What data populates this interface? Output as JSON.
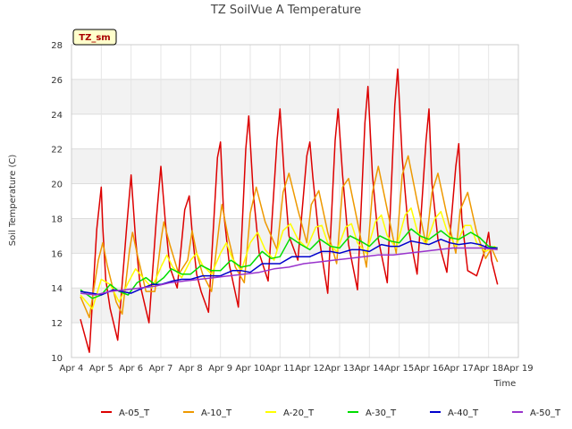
{
  "chart_data": {
    "type": "line",
    "title": "TZ SoilVue A Temperature",
    "xlabel": "Time",
    "ylabel": "Soil Temperature (C)",
    "tag": "TZ_sm",
    "xlim": [
      4,
      19
    ],
    "ylim": [
      10,
      28
    ],
    "x_ticks": [
      {
        "v": 4,
        "label": "Apr 4"
      },
      {
        "v": 5,
        "label": "Apr 5"
      },
      {
        "v": 6,
        "label": "Apr 6"
      },
      {
        "v": 7,
        "label": "Apr 7"
      },
      {
        "v": 8,
        "label": "Apr 8"
      },
      {
        "v": 9,
        "label": "Apr 9"
      },
      {
        "v": 10,
        "label": "Apr 10"
      },
      {
        "v": 11,
        "label": "Apr 11"
      },
      {
        "v": 12,
        "label": "Apr 12"
      },
      {
        "v": 13,
        "label": "Apr 13"
      },
      {
        "v": 14,
        "label": "Apr 14"
      },
      {
        "v": 15,
        "label": "Apr 15"
      },
      {
        "v": 16,
        "label": "Apr 16"
      },
      {
        "v": 17,
        "label": "Apr 17"
      },
      {
        "v": 18,
        "label": "Apr 18"
      },
      {
        "v": 19,
        "label": "Apr 19"
      }
    ],
    "y_ticks": [
      10,
      12,
      14,
      16,
      18,
      20,
      22,
      24,
      26,
      28
    ],
    "grid": true,
    "legend_position": "bottom",
    "series": [
      {
        "name": "A-05_T",
        "color": "#dd0000",
        "x": [
          4.3,
          4.6,
          4.85,
          5.0,
          5.05,
          5.15,
          5.3,
          5.55,
          5.85,
          6.0,
          6.15,
          6.3,
          6.6,
          6.85,
          7.0,
          7.15,
          7.3,
          7.55,
          7.8,
          7.95,
          8.05,
          8.2,
          8.35,
          8.6,
          8.9,
          9.0,
          9.1,
          9.3,
          9.6,
          9.85,
          9.95,
          10.1,
          10.3,
          10.6,
          10.9,
          11.0,
          11.15,
          11.3,
          11.6,
          11.9,
          12.0,
          12.1,
          12.3,
          12.6,
          12.85,
          12.95,
          13.1,
          13.3,
          13.6,
          13.85,
          13.95,
          14.1,
          14.3,
          14.6,
          14.85,
          14.95,
          15.1,
          15.3,
          15.6,
          15.9,
          16.0,
          16.1,
          16.3,
          16.6,
          16.9,
          17.0,
          17.1,
          17.3,
          17.6,
          17.9,
          18.0,
          18.1,
          18.3
        ],
        "y": [
          12.2,
          10.3,
          17.4,
          19.8,
          17.5,
          14.5,
          12.8,
          11.0,
          17.5,
          20.5,
          16.8,
          14.2,
          12.0,
          18.0,
          21.0,
          17.8,
          15.2,
          14.0,
          18.5,
          19.3,
          17.2,
          14.8,
          13.8,
          12.6,
          21.5,
          22.4,
          18.5,
          15.3,
          12.9,
          22.0,
          23.9,
          19.5,
          16.0,
          14.4,
          22.5,
          24.3,
          20.2,
          17.0,
          15.6,
          21.6,
          22.4,
          20.4,
          17.0,
          13.7,
          22.5,
          24.3,
          20.5,
          16.5,
          13.9,
          23.5,
          25.6,
          20.5,
          16.8,
          14.3,
          24.5,
          26.6,
          21.5,
          17.5,
          14.8,
          22.5,
          24.3,
          20.0,
          16.8,
          14.9,
          21.0,
          22.3,
          18.0,
          15.0,
          14.7,
          16.3,
          17.2,
          15.6,
          14.2
        ]
      },
      {
        "name": "A-10_T",
        "color": "#ee9900",
        "x": [
          4.3,
          4.6,
          4.9,
          5.05,
          5.2,
          5.5,
          5.7,
          5.95,
          6.05,
          6.2,
          6.5,
          6.8,
          7.0,
          7.1,
          7.3,
          7.6,
          7.9,
          8.05,
          8.2,
          8.4,
          8.7,
          8.95,
          9.05,
          9.25,
          9.5,
          9.8,
          10.0,
          10.2,
          10.5,
          10.9,
          11.1,
          11.3,
          11.6,
          11.9,
          12.05,
          12.3,
          12.6,
          12.9,
          13.1,
          13.3,
          13.6,
          13.9,
          14.1,
          14.3,
          14.6,
          14.9,
          15.1,
          15.3,
          15.6,
          15.9,
          16.1,
          16.3,
          16.6,
          16.9,
          17.05,
          17.3,
          17.6,
          17.9,
          18.1,
          18.3
        ],
        "y": [
          13.5,
          12.3,
          15.6,
          16.6,
          15.3,
          13.2,
          12.5,
          16.2,
          17.2,
          16.0,
          13.8,
          13.8,
          16.7,
          17.8,
          16.5,
          14.8,
          15.6,
          17.3,
          16.0,
          14.8,
          13.8,
          17.5,
          18.8,
          17.0,
          15.2,
          14.3,
          18.3,
          19.8,
          17.8,
          16.2,
          19.5,
          20.6,
          18.5,
          16.6,
          18.8,
          19.6,
          17.2,
          15.4,
          19.8,
          20.3,
          17.8,
          15.2,
          19.5,
          21.0,
          18.5,
          16.0,
          20.5,
          21.6,
          19.0,
          16.5,
          19.5,
          20.6,
          18.2,
          16.0,
          18.5,
          19.5,
          17.2,
          15.7,
          16.3,
          15.5
        ]
      },
      {
        "name": "A-20_T",
        "color": "#ffff00",
        "x": [
          4.3,
          4.7,
          5.0,
          5.3,
          5.6,
          5.9,
          6.15,
          6.4,
          6.7,
          7.0,
          7.2,
          7.4,
          7.7,
          8.0,
          8.2,
          8.4,
          8.7,
          9.0,
          9.2,
          9.4,
          9.7,
          10.0,
          10.25,
          10.5,
          10.8,
          11.1,
          11.35,
          11.6,
          11.9,
          12.2,
          12.4,
          12.6,
          12.9,
          13.2,
          13.4,
          13.6,
          13.9,
          14.2,
          14.4,
          14.6,
          14.9,
          15.2,
          15.4,
          15.6,
          15.9,
          16.2,
          16.4,
          16.6,
          16.9,
          17.2,
          17.4,
          17.6,
          17.9,
          18.2,
          18.3
        ],
        "y": [
          13.6,
          12.8,
          14.5,
          14.2,
          13.2,
          14.3,
          15.1,
          14.6,
          14.0,
          15.2,
          15.9,
          15.2,
          14.6,
          15.6,
          16.0,
          15.3,
          14.8,
          16.0,
          16.6,
          15.7,
          15.0,
          16.6,
          17.2,
          16.2,
          15.6,
          17.3,
          17.7,
          16.8,
          16.3,
          17.5,
          17.6,
          16.6,
          16.1,
          17.5,
          17.7,
          16.6,
          16.0,
          17.8,
          18.2,
          17.0,
          16.3,
          18.2,
          18.6,
          17.3,
          16.5,
          18.0,
          18.4,
          17.3,
          16.4,
          17.6,
          17.6,
          16.6,
          16.1,
          16.4,
          16.2
        ]
      },
      {
        "name": "A-30_T",
        "color": "#00dd00",
        "x": [
          4.3,
          4.7,
          5.0,
          5.3,
          5.6,
          5.9,
          6.2,
          6.5,
          6.8,
          7.1,
          7.35,
          7.7,
          8.0,
          8.35,
          8.7,
          9.0,
          9.35,
          9.7,
          10.0,
          10.4,
          10.7,
          11.0,
          11.35,
          11.7,
          12.0,
          12.35,
          12.7,
          13.0,
          13.35,
          13.7,
          14.0,
          14.35,
          14.7,
          15.0,
          15.4,
          15.7,
          16.0,
          16.4,
          16.7,
          17.0,
          17.4,
          17.7,
          18.0,
          18.3
        ],
        "y": [
          13.9,
          13.4,
          13.6,
          14.2,
          13.8,
          13.6,
          14.3,
          14.6,
          14.2,
          14.6,
          15.1,
          14.8,
          14.8,
          15.3,
          15.0,
          15.0,
          15.6,
          15.2,
          15.3,
          16.1,
          15.7,
          15.8,
          16.9,
          16.5,
          16.2,
          16.8,
          16.4,
          16.3,
          17.0,
          16.7,
          16.4,
          17.0,
          16.7,
          16.6,
          17.4,
          17.0,
          16.8,
          17.3,
          16.9,
          16.8,
          17.2,
          16.9,
          16.4,
          16.3
        ]
      },
      {
        "name": "A-40_T",
        "color": "#0000cc",
        "x": [
          4.3,
          4.7,
          5.0,
          5.4,
          5.7,
          6.0,
          6.4,
          6.7,
          7.0,
          7.4,
          7.7,
          8.0,
          8.4,
          8.7,
          9.0,
          9.4,
          9.7,
          10.0,
          10.4,
          10.7,
          11.0,
          11.4,
          11.7,
          12.0,
          12.4,
          12.7,
          13.0,
          13.4,
          13.7,
          14.0,
          14.4,
          14.7,
          15.0,
          15.4,
          15.7,
          16.0,
          16.4,
          16.7,
          17.0,
          17.4,
          17.7,
          18.0,
          18.3
        ],
        "y": [
          13.8,
          13.7,
          13.6,
          13.9,
          13.8,
          13.7,
          14.0,
          14.2,
          14.2,
          14.4,
          14.5,
          14.5,
          14.7,
          14.7,
          14.7,
          15.0,
          15.0,
          14.9,
          15.4,
          15.4,
          15.4,
          15.8,
          15.8,
          15.8,
          16.1,
          16.1,
          16.0,
          16.2,
          16.2,
          16.1,
          16.5,
          16.4,
          16.4,
          16.7,
          16.6,
          16.5,
          16.8,
          16.6,
          16.5,
          16.6,
          16.5,
          16.3,
          16.3
        ]
      },
      {
        "name": "A-50_T",
        "color": "#9933cc",
        "x": [
          4.3,
          4.8,
          5.3,
          5.8,
          6.3,
          6.8,
          7.3,
          7.8,
          8.3,
          8.8,
          9.3,
          9.8,
          10.3,
          10.8,
          11.3,
          11.8,
          12.3,
          12.8,
          13.3,
          13.8,
          14.3,
          14.8,
          15.3,
          15.8,
          16.3,
          16.8,
          17.3,
          17.8,
          18.3
        ],
        "y": [
          13.7,
          13.6,
          13.8,
          13.9,
          14.0,
          14.1,
          14.3,
          14.4,
          14.5,
          14.6,
          14.7,
          14.8,
          14.9,
          15.1,
          15.2,
          15.4,
          15.5,
          15.6,
          15.7,
          15.8,
          15.9,
          15.9,
          16.0,
          16.1,
          16.2,
          16.3,
          16.3,
          16.3,
          16.2
        ]
      }
    ]
  }
}
